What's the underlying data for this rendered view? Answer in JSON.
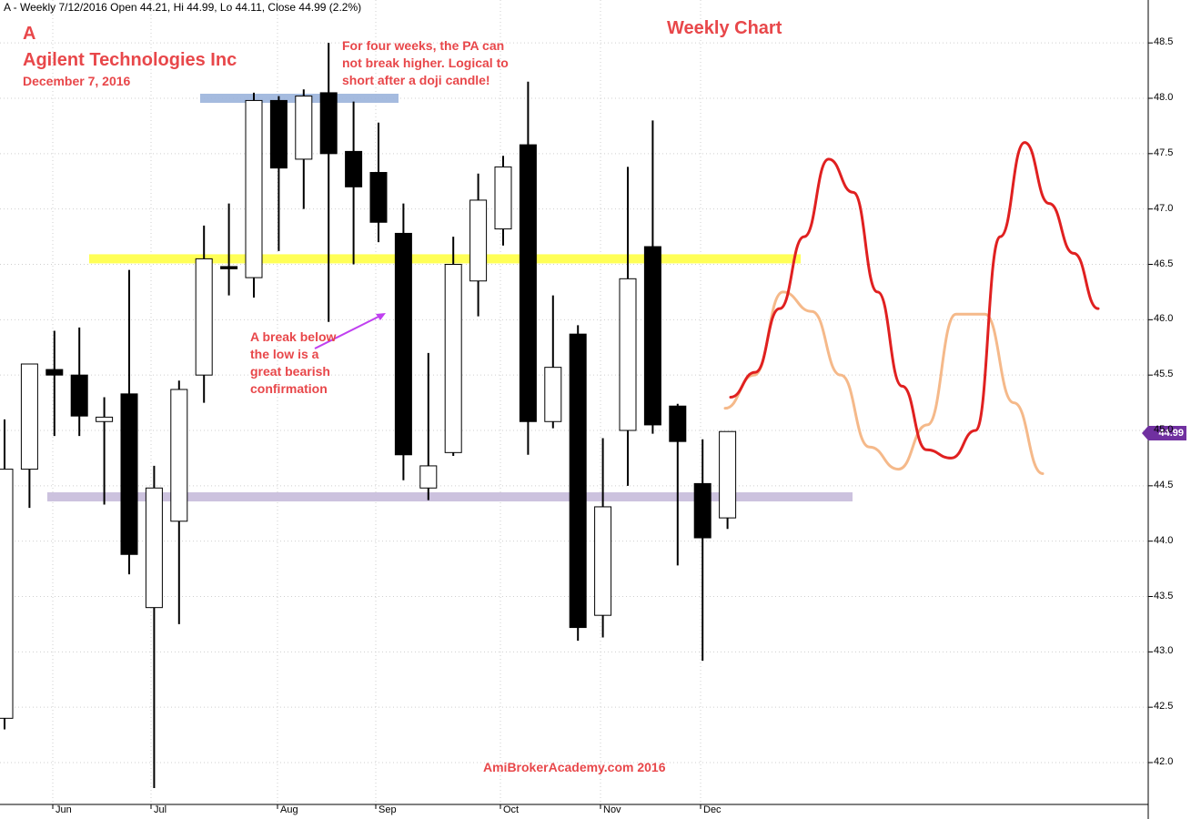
{
  "header_text": "A - Weekly 7/12/2016 Open 44.21, Hi 44.99, Lo 44.11, Close 44.99 (2.2%)",
  "symbol": "A",
  "company": "Agilent Technologies Inc",
  "date": "December 7, 2016",
  "chart_title": "Weekly Chart",
  "annotations": {
    "top_note": [
      "For four weeks, the PA can",
      "not break higher. Logical to",
      "short after a doji candle!"
    ],
    "mid_note": [
      "A break below",
      "the low is a",
      "great bearish",
      "confirmation"
    ]
  },
  "watermark": "AmiBrokerAcademy.com   2016",
  "last_price_label": "44.99",
  "colors": {
    "annotation_text": "#e8474a",
    "forecast_red": "#e02020",
    "forecast_orange": "#f5b98a",
    "resistance_blue": "#9bb4dc",
    "support_yellow": "#ffff4d",
    "support_lavender": "#c9bfdc",
    "arrow": "#c040f0",
    "price_badge": "#7030a0"
  },
  "chart_data": {
    "type": "candlestick",
    "ylim": [
      41.6,
      48.8
    ],
    "ytick_labels": [
      "42.0",
      "42.5",
      "43.0",
      "43.5",
      "44.0",
      "44.5",
      "45.0",
      "45.5",
      "46.0",
      "46.5",
      "47.0",
      "47.5",
      "48.0",
      "48.5"
    ],
    "xtick_labels": [
      "Jun",
      "Jul",
      "Aug",
      "Sep",
      "Oct",
      "Nov",
      "Dec"
    ],
    "grid": true,
    "candles": [
      {
        "o": 42.4,
        "h": 45.1,
        "l": 42.3,
        "c": 44.65
      },
      {
        "o": 44.65,
        "h": 45.6,
        "l": 44.3,
        "c": 45.6
      },
      {
        "o": 45.55,
        "h": 45.9,
        "l": 44.95,
        "c": 45.5
      },
      {
        "o": 45.5,
        "h": 45.93,
        "l": 44.95,
        "c": 45.13
      },
      {
        "o": 45.08,
        "h": 45.3,
        "l": 44.33,
        "c": 45.12
      },
      {
        "o": 45.33,
        "h": 46.45,
        "l": 43.7,
        "c": 43.88
      },
      {
        "o": 43.4,
        "h": 44.68,
        "l": 41.77,
        "c": 44.48
      },
      {
        "o": 44.18,
        "h": 45.45,
        "l": 43.25,
        "c": 45.37
      },
      {
        "o": 45.5,
        "h": 46.85,
        "l": 45.25,
        "c": 46.55
      },
      {
        "o": 46.48,
        "h": 47.05,
        "l": 46.22,
        "c": 46.46
      },
      {
        "o": 46.38,
        "h": 48.05,
        "l": 46.2,
        "c": 47.98
      },
      {
        "o": 47.98,
        "h": 48.02,
        "l": 46.62,
        "c": 47.37
      },
      {
        "o": 47.45,
        "h": 48.08,
        "l": 47.0,
        "c": 48.02
      },
      {
        "o": 48.05,
        "h": 48.5,
        "l": 45.98,
        "c": 47.5
      },
      {
        "o": 47.52,
        "h": 47.97,
        "l": 46.5,
        "c": 47.2
      },
      {
        "o": 47.33,
        "h": 47.78,
        "l": 46.7,
        "c": 46.88
      },
      {
        "o": 46.78,
        "h": 47.05,
        "l": 44.55,
        "c": 44.78
      },
      {
        "o": 44.48,
        "h": 45.7,
        "l": 44.37,
        "c": 44.68
      },
      {
        "o": 44.8,
        "h": 46.75,
        "l": 44.77,
        "c": 46.5
      },
      {
        "o": 46.35,
        "h": 47.32,
        "l": 46.03,
        "c": 47.08
      },
      {
        "o": 46.82,
        "h": 47.48,
        "l": 46.67,
        "c": 47.38
      },
      {
        "o": 47.58,
        "h": 48.15,
        "l": 44.78,
        "c": 45.08
      },
      {
        "o": 45.08,
        "h": 46.22,
        "l": 45.02,
        "c": 45.57
      },
      {
        "o": 45.87,
        "h": 45.95,
        "l": 43.1,
        "c": 43.22
      },
      {
        "o": 43.33,
        "h": 44.93,
        "l": 43.13,
        "c": 44.31
      },
      {
        "o": 45.0,
        "h": 47.38,
        "l": 44.5,
        "c": 46.37
      },
      {
        "o": 46.66,
        "h": 47.8,
        "l": 44.97,
        "c": 45.05
      },
      {
        "o": 45.22,
        "h": 45.24,
        "l": 43.78,
        "c": 44.9
      },
      {
        "o": 44.52,
        "h": 44.92,
        "l": 42.92,
        "c": 44.03
      },
      {
        "o": 44.21,
        "h": 44.99,
        "l": 44.11,
        "c": 44.99
      }
    ],
    "levels": [
      {
        "name": "resistance",
        "y": 48.0
      },
      {
        "name": "support-upper",
        "y": 46.55
      },
      {
        "name": "support-lower",
        "y": 44.4
      }
    ],
    "forecast_red": [
      [
        45.3,
        45.3
      ],
      [
        45.55,
        45.5
      ],
      [
        46.2,
        46.0
      ],
      [
        46.9,
        46.6
      ],
      [
        47.6,
        47.3
      ],
      [
        47.0,
        47.3
      ],
      [
        46.0,
        46.5
      ],
      [
        45.3,
        45.5
      ],
      [
        44.85,
        44.8
      ],
      [
        44.7,
        44.8
      ],
      [
        45.0,
        45.0
      ],
      [
        47.0,
        46.5
      ],
      [
        47.8,
        47.4
      ],
      [
        47.0,
        47.1
      ],
      [
        46.6,
        46.6
      ],
      [
        46.1,
        46.1
      ]
    ],
    "forecast_orange": [
      [
        45.2,
        45.2
      ],
      [
        45.5,
        45.5
      ],
      [
        46.3,
        46.2
      ],
      [
        46.05,
        46.1
      ],
      [
        45.4,
        45.6
      ],
      [
        44.8,
        44.9
      ],
      [
        44.65,
        44.65
      ],
      [
        45.0,
        45.1
      ],
      [
        46.0,
        46.1
      ],
      [
        46.0,
        46.1
      ],
      [
        45.3,
        45.2
      ],
      [
        44.62,
        44.6
      ]
    ]
  }
}
